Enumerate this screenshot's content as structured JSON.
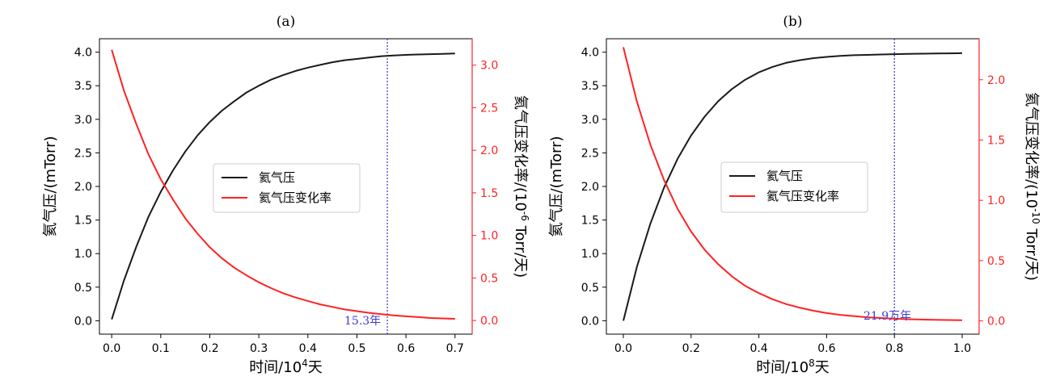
{
  "colors": {
    "black_series": "#1a1a1a",
    "red_series": "#ff2222",
    "marker_line": "#3333cc",
    "annotation": "#3b3bd6",
    "axis": "#000000"
  },
  "chart_data": [
    {
      "type": "line",
      "panel_label": "(a)",
      "xlabel_main": "时间/10",
      "xlabel_sup": "4",
      "xlabel_tail": "天",
      "ylabel_left": "氦气压/(mTorr)",
      "ylabel_right_pre": "氦气压变化率/(10",
      "ylabel_right_sup": "-6",
      "ylabel_right_post": " Torr/天)",
      "xlim": [
        -0.025,
        0.735
      ],
      "ylim_left": [
        -0.2,
        4.2
      ],
      "ylim_right": [
        -0.16,
        3.31
      ],
      "xticks": [
        0.0,
        0.1,
        0.2,
        0.3,
        0.4,
        0.5,
        0.6,
        0.7
      ],
      "xtick_labels": [
        "0.0",
        "0.1",
        "0.2",
        "0.3",
        "0.4",
        "0.5",
        "0.6",
        "0.7"
      ],
      "yticks_left": [
        0.0,
        0.5,
        1.0,
        1.5,
        2.0,
        2.5,
        3.0,
        3.5,
        4.0
      ],
      "ytick_labels_left": [
        "0.0",
        "0.5",
        "1.0",
        "1.5",
        "2.0",
        "2.5",
        "3.0",
        "3.5",
        "4.0"
      ],
      "yticks_right": [
        0.0,
        0.5,
        1.0,
        1.5,
        2.0,
        2.5,
        3.0
      ],
      "ytick_labels_right": [
        "0.0",
        "0.5",
        "1.0",
        "1.5",
        "2.0",
        "2.5",
        "3.0"
      ],
      "vline_x": 0.562,
      "annotation": "15.3年",
      "legend_position": "center",
      "series": [
        {
          "name": "氦气压",
          "axis": "left",
          "color": "black",
          "x": [
            0.0,
            0.025,
            0.05,
            0.075,
            0.1,
            0.125,
            0.15,
            0.175,
            0.2,
            0.225,
            0.25,
            0.275,
            0.3,
            0.325,
            0.35,
            0.375,
            0.4,
            0.425,
            0.45,
            0.475,
            0.5,
            0.525,
            0.55,
            0.575,
            0.6,
            0.625,
            0.65,
            0.675,
            0.7
          ],
          "y": [
            0.02,
            0.6,
            1.1,
            1.55,
            1.92,
            2.24,
            2.52,
            2.76,
            2.96,
            3.13,
            3.27,
            3.4,
            3.5,
            3.59,
            3.66,
            3.72,
            3.77,
            3.81,
            3.85,
            3.88,
            3.9,
            3.92,
            3.94,
            3.95,
            3.96,
            3.965,
            3.97,
            3.975,
            3.98
          ]
        },
        {
          "name": "氦气压变化率",
          "axis": "right",
          "color": "red",
          "x": [
            0.0,
            0.025,
            0.05,
            0.075,
            0.1,
            0.125,
            0.15,
            0.175,
            0.2,
            0.225,
            0.25,
            0.275,
            0.3,
            0.325,
            0.35,
            0.375,
            0.4,
            0.425,
            0.45,
            0.475,
            0.5,
            0.525,
            0.55,
            0.575,
            0.6,
            0.625,
            0.65,
            0.675,
            0.7
          ],
          "y": [
            3.18,
            2.7,
            2.31,
            1.95,
            1.66,
            1.42,
            1.2,
            1.02,
            0.86,
            0.73,
            0.62,
            0.53,
            0.45,
            0.38,
            0.32,
            0.27,
            0.23,
            0.19,
            0.16,
            0.13,
            0.11,
            0.09,
            0.075,
            0.06,
            0.05,
            0.04,
            0.03,
            0.025,
            0.02
          ]
        }
      ]
    },
    {
      "type": "line",
      "panel_label": "(b)",
      "xlabel_main": "时间/10",
      "xlabel_sup": "8",
      "xlabel_tail": "天",
      "ylabel_left": "氦气压/(mTorr)",
      "ylabel_right_pre": "氦气压变化率/(10",
      "ylabel_right_sup": "-10",
      "ylabel_right_post": " Torr/天)",
      "xlim": [
        -0.05,
        1.05
      ],
      "ylim_left": [
        -0.2,
        4.2
      ],
      "ylim_right": [
        -0.11,
        2.34
      ],
      "xticks": [
        0.0,
        0.2,
        0.4,
        0.6,
        0.8,
        1.0
      ],
      "xtick_labels": [
        "0.0",
        "0.2",
        "0.4",
        "0.6",
        "0.8",
        "1.0"
      ],
      "yticks_left": [
        0.0,
        0.5,
        1.0,
        1.5,
        2.0,
        2.5,
        3.0,
        3.5,
        4.0
      ],
      "ytick_labels_left": [
        "0.0",
        "0.5",
        "1.0",
        "1.5",
        "2.0",
        "2.5",
        "3.0",
        "3.5",
        "4.0"
      ],
      "yticks_right": [
        0.0,
        0.5,
        1.0,
        1.5,
        2.0
      ],
      "ytick_labels_right": [
        "0.0",
        "0.5",
        "1.0",
        "1.5",
        "2.0"
      ],
      "vline_x": 0.8,
      "annotation": "21.9万年",
      "legend_position": "center",
      "series": [
        {
          "name": "氦气压",
          "axis": "left",
          "color": "black",
          "x": [
            0.0,
            0.04,
            0.08,
            0.12,
            0.16,
            0.2,
            0.24,
            0.28,
            0.32,
            0.36,
            0.4,
            0.44,
            0.48,
            0.52,
            0.56,
            0.6,
            0.64,
            0.68,
            0.72,
            0.76,
            0.8,
            0.84,
            0.88,
            0.92,
            0.96,
            1.0
          ],
          "y": [
            0.0,
            0.8,
            1.45,
            1.98,
            2.41,
            2.76,
            3.04,
            3.27,
            3.45,
            3.59,
            3.7,
            3.78,
            3.84,
            3.88,
            3.91,
            3.93,
            3.945,
            3.955,
            3.96,
            3.965,
            3.97,
            3.975,
            3.978,
            3.98,
            3.982,
            3.985
          ]
        },
        {
          "name": "氦气压变化率",
          "axis": "right",
          "color": "red",
          "x": [
            0.0,
            0.04,
            0.08,
            0.12,
            0.16,
            0.2,
            0.24,
            0.28,
            0.32,
            0.36,
            0.4,
            0.44,
            0.48,
            0.52,
            0.56,
            0.6,
            0.64,
            0.68,
            0.72,
            0.76,
            0.8,
            0.84,
            0.88,
            0.92,
            0.96,
            1.0
          ],
          "y": [
            2.27,
            1.82,
            1.46,
            1.17,
            0.93,
            0.74,
            0.59,
            0.47,
            0.37,
            0.29,
            0.23,
            0.18,
            0.14,
            0.11,
            0.085,
            0.065,
            0.05,
            0.04,
            0.03,
            0.024,
            0.018,
            0.014,
            0.011,
            0.009,
            0.007,
            0.006
          ]
        }
      ]
    }
  ]
}
